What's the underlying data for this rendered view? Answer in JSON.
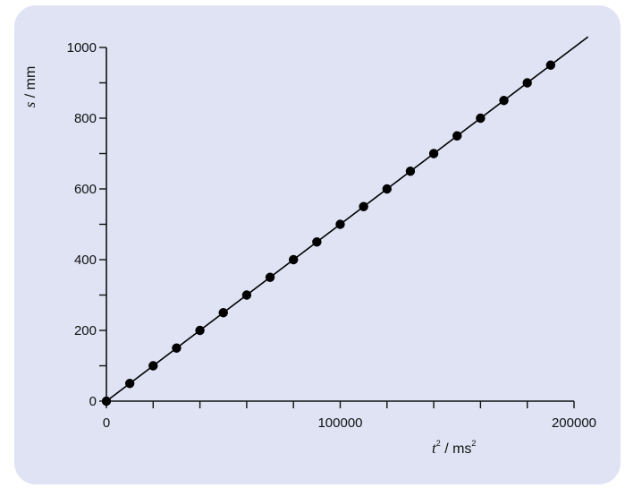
{
  "chart_data": {
    "type": "scatter",
    "title": "",
    "xlabel": {
      "var": "t",
      "unit": "ms",
      "var_exp": "2",
      "unit_exp": "2"
    },
    "ylabel": {
      "var": "s",
      "unit": "mm"
    },
    "xlim": [
      0,
      200000
    ],
    "ylim": [
      0,
      1000
    ],
    "x_ticks": [
      0,
      100000,
      200000
    ],
    "x_tick_labels": [
      "0",
      "100000",
      "200000"
    ],
    "x_minor_step": 20000,
    "y_ticks": [
      0,
      200,
      400,
      600,
      800,
      1000
    ],
    "y_tick_labels": [
      "0",
      "200",
      "400",
      "600",
      "800",
      "1000"
    ],
    "y_minor_step": 100,
    "grid": false,
    "series": [
      {
        "points": [
          [
            0,
            0
          ],
          [
            10000,
            50
          ],
          [
            20000,
            100
          ],
          [
            30000,
            150
          ],
          [
            40000,
            200
          ],
          [
            50000,
            250
          ],
          [
            60000,
            300
          ],
          [
            70000,
            350
          ],
          [
            80000,
            400
          ],
          [
            90000,
            450
          ],
          [
            100000,
            500
          ],
          [
            110000,
            550
          ],
          [
            120000,
            600
          ],
          [
            130000,
            650
          ],
          [
            140000,
            700
          ],
          [
            150000,
            750
          ],
          [
            160000,
            800
          ],
          [
            170000,
            850
          ],
          [
            180000,
            900
          ],
          [
            190000,
            950
          ]
        ]
      }
    ],
    "fit_line": {
      "x0": 0,
      "y0": 0,
      "x1": 206000,
      "y1": 1030
    },
    "colors": {
      "background": "#dfe3f4",
      "marker": "#000000",
      "line": "#000000"
    }
  }
}
